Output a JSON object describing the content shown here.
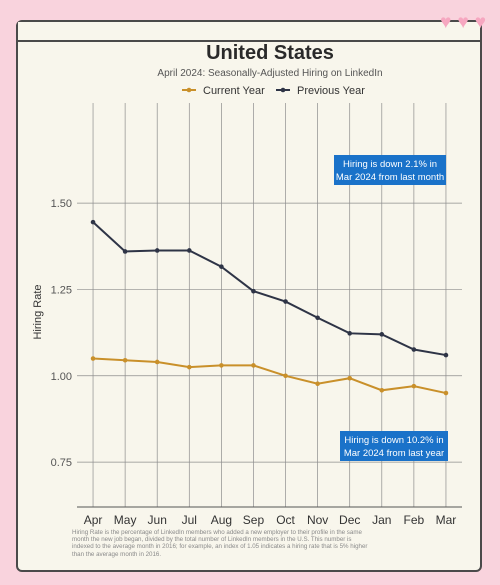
{
  "chart_data": {
    "type": "line",
    "title": "United States",
    "subtitle": "April 2024: Seasonally-Adjusted Hiring on LinkedIn",
    "xlabel": "",
    "ylabel": "Hiring Rate",
    "categories": [
      "Apr",
      "May",
      "Jun",
      "Jul",
      "Aug",
      "Sep",
      "Oct",
      "Nov",
      "Dec",
      "Jan",
      "Feb",
      "Mar"
    ],
    "series": [
      {
        "name": "Current Year",
        "color": "#c9902a",
        "values": [
          1.05,
          1.045,
          1.04,
          1.025,
          1.03,
          1.03,
          1.0,
          0.977,
          0.993,
          0.958,
          0.97,
          0.95
        ]
      },
      {
        "name": "Previous Year",
        "color": "#2e3446",
        "values": [
          1.445,
          1.36,
          1.363,
          1.363,
          1.316,
          1.245,
          1.215,
          1.168,
          1.123,
          1.12,
          1.076,
          1.06
        ]
      }
    ],
    "yticks": [
      0.75,
      1.0,
      1.25,
      1.5
    ],
    "ytick_labels": [
      "0.75",
      "1.00",
      "1.25",
      "1.50"
    ],
    "ylim": [
      0.62,
      1.79
    ],
    "grid": true,
    "legend_position": "top-center",
    "annotations": [
      {
        "lines": [
          "Hiring is down 2.1% in",
          "Mar 2024 from last month"
        ],
        "color": "#1a72c9",
        "anchor": "upper-right"
      },
      {
        "lines": [
          "Hiring is down 10.2% in",
          "Mar 2024 from last year"
        ],
        "color": "#1a72c9",
        "anchor": "lower-right"
      }
    ]
  },
  "footnote": "Hiring Rate is the percentage of LinkedIn members who added a new employer to their profile in the same month the new job began, divided by the total number of LinkedIn members in the U.S. This number is indexed to the average month in 2016; for example, an index of 1.05 indicates a hiring rate that is 5% higher than the average month in 2016.",
  "decor": {
    "hearts": [
      "heart-icon",
      "heart-icon",
      "heart-icon"
    ]
  }
}
